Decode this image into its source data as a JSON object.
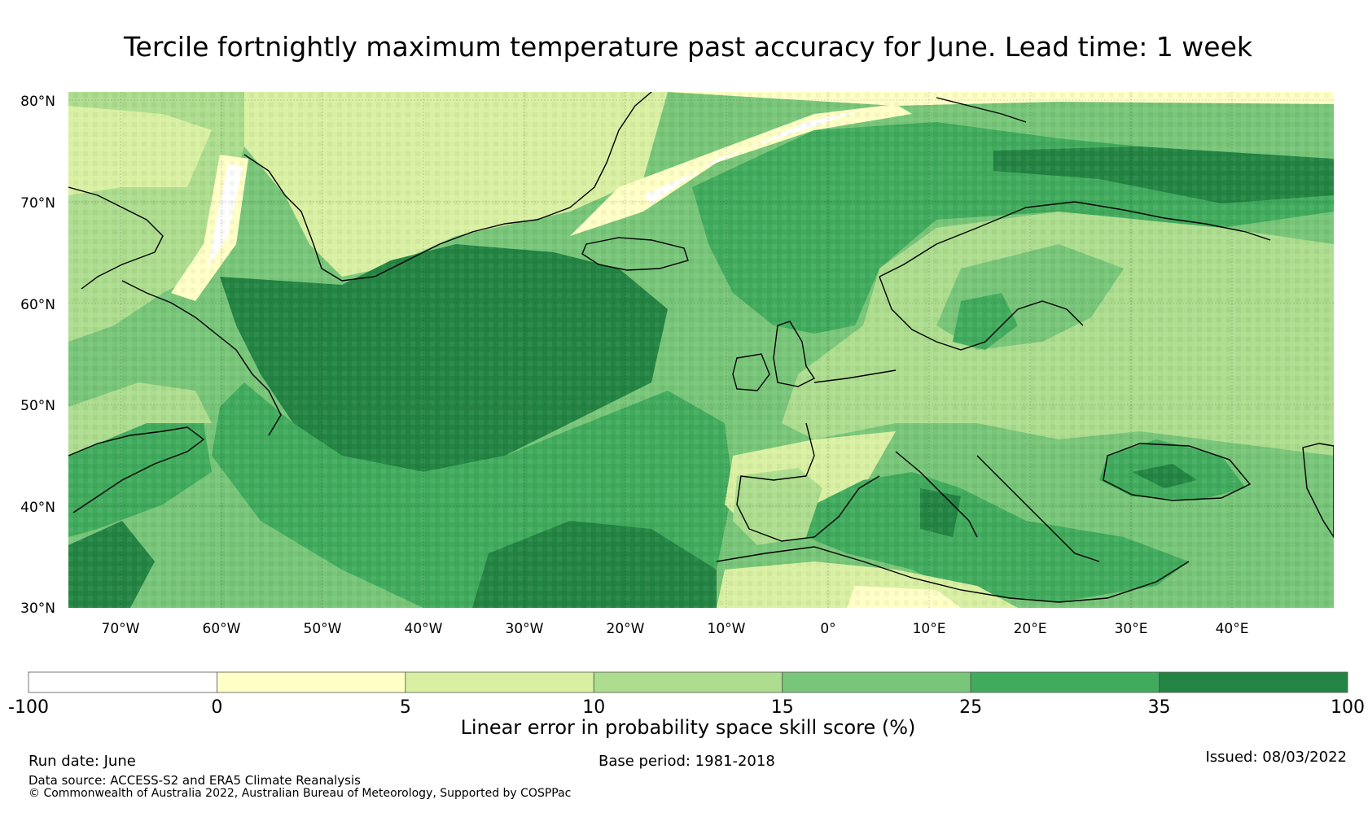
{
  "title": "Tercile fortnightly maximum temperature past accuracy for June. Lead time: 1 week",
  "map": {
    "lat_labels": [
      "80°N",
      "70°N",
      "60°N",
      "50°N",
      "40°N",
      "30°N"
    ],
    "lon_labels": [
      "70°W",
      "60°W",
      "50°W",
      "40°W",
      "30°W",
      "20°W",
      "10°W",
      "0°",
      "10°E",
      "20°E",
      "30°E",
      "40°E"
    ],
    "region_skill": [
      {
        "region": "Greenland interior",
        "class": "5-10"
      },
      {
        "region": "Greenland coast / sea-ice edge",
        "class": "-100-0"
      },
      {
        "region": "North Atlantic (south of Greenland/Iceland)",
        "class": "35-100"
      },
      {
        "region": "Central North Atlantic",
        "class": "25-35"
      },
      {
        "region": "Norwegian Sea",
        "class": "25-35"
      },
      {
        "region": "Barents Sea",
        "class": "35-100"
      },
      {
        "region": "Scandinavia",
        "class": "15-25"
      },
      {
        "region": "Baltic Sea",
        "class": "25-35"
      },
      {
        "region": "Western Europe",
        "class": "10-15"
      },
      {
        "region": "Mediterranean Sea",
        "class": "25-35"
      },
      {
        "region": "Black Sea",
        "class": "25-35"
      },
      {
        "region": "North Africa",
        "class": "5-10"
      },
      {
        "region": "Subtropical Atlantic (Canary region)",
        "class": "35-100"
      }
    ]
  },
  "colorbar": {
    "ticks": [
      "-100",
      "0",
      "5",
      "10",
      "15",
      "25",
      "35",
      "100"
    ],
    "colors": [
      "#ffffff",
      "#ffffc6",
      "#d9f0a3",
      "#addd8e",
      "#78c679",
      "#41ab5d",
      "#238443"
    ],
    "label": "Linear error in probability space skill score (%)"
  },
  "footer": {
    "run_date": "Run date: June",
    "base_period": "Base period: 1981-2018",
    "issued": "Issued: 08/03/2022",
    "source": "Data source: ACCESS-S2 and ERA5 Climate Reanalysis",
    "copyright": "© Commonwealth of Australia 2022, Australian Bureau of Meteorology, Supported by COSPPac"
  }
}
